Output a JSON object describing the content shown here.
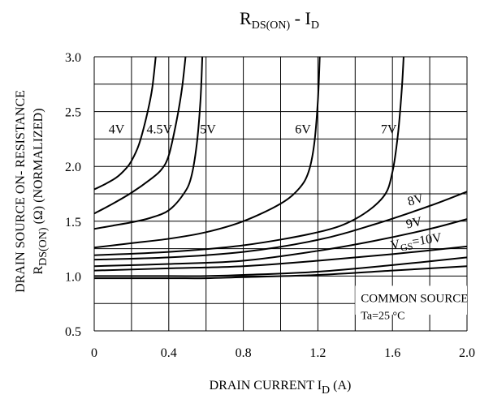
{
  "chart_data": {
    "type": "line",
    "title": {
      "main": "R",
      "main_sub": "DS(ON)",
      "sep": " - ",
      "i": "I",
      "i_sub": "D"
    },
    "xlabel": {
      "pre": "DRAIN CURRENT I",
      "sub": "D",
      "post": "  (A)"
    },
    "ylabel": {
      "line1": "DRAIN SOURCE ON- RESISTANCE",
      "line2_pre": "R",
      "line2_sub": "DS(ON)",
      "line2_post": "  (Ω)    (NORMALIZED)"
    },
    "xlim": [
      0,
      2.0
    ],
    "ylim": [
      0.5,
      3.0
    ],
    "x_ticks": [
      "0",
      "0.4",
      "0.8",
      "1.2",
      "1.6",
      "2.0"
    ],
    "y_ticks": [
      "0.5",
      "1.0",
      "1.5",
      "2.0",
      "2.5",
      "3.0"
    ],
    "grid": true,
    "annotation": {
      "line1": "COMMON SOURCE",
      "line2": "Ta=25 °C"
    },
    "series": [
      {
        "name": "4V",
        "label_pre": "4V",
        "points": [
          [
            0,
            1.79
          ],
          [
            0.06,
            1.84
          ],
          [
            0.12,
            1.9
          ],
          [
            0.17,
            1.98
          ],
          [
            0.2,
            2.05
          ],
          [
            0.24,
            2.2
          ],
          [
            0.28,
            2.45
          ],
          [
            0.31,
            2.7
          ],
          [
            0.33,
            3.0
          ]
        ]
      },
      {
        "name": "4.5V",
        "label_pre": "4.5V",
        "points": [
          [
            0,
            1.57
          ],
          [
            0.1,
            1.66
          ],
          [
            0.2,
            1.76
          ],
          [
            0.3,
            1.88
          ],
          [
            0.36,
            1.97
          ],
          [
            0.4,
            2.1
          ],
          [
            0.44,
            2.4
          ],
          [
            0.47,
            2.7
          ],
          [
            0.49,
            3.0
          ]
        ]
      },
      {
        "name": "5V",
        "label_pre": "5V",
        "points": [
          [
            0,
            1.43
          ],
          [
            0.1,
            1.46
          ],
          [
            0.2,
            1.49
          ],
          [
            0.3,
            1.53
          ],
          [
            0.4,
            1.6
          ],
          [
            0.48,
            1.75
          ],
          [
            0.52,
            1.9
          ],
          [
            0.55,
            2.2
          ],
          [
            0.57,
            2.6
          ],
          [
            0.58,
            3.0
          ]
        ]
      },
      {
        "name": "6V",
        "label_pre": "6V",
        "points": [
          [
            0,
            1.26
          ],
          [
            0.2,
            1.3
          ],
          [
            0.4,
            1.34
          ],
          [
            0.6,
            1.4
          ],
          [
            0.8,
            1.5
          ],
          [
            1.0,
            1.66
          ],
          [
            1.1,
            1.8
          ],
          [
            1.15,
            1.95
          ],
          [
            1.18,
            2.2
          ],
          [
            1.2,
            2.6
          ],
          [
            1.21,
            3.0
          ]
        ]
      },
      {
        "name": "7V",
        "label_pre": "7V",
        "points": [
          [
            0,
            1.19
          ],
          [
            0.4,
            1.22
          ],
          [
            0.8,
            1.28
          ],
          [
            1.2,
            1.4
          ],
          [
            1.4,
            1.52
          ],
          [
            1.55,
            1.72
          ],
          [
            1.6,
            1.95
          ],
          [
            1.63,
            2.3
          ],
          [
            1.65,
            2.7
          ],
          [
            1.66,
            3.0
          ]
        ]
      },
      {
        "name": "8V",
        "label_pre": "8V",
        "points": [
          [
            0,
            1.15
          ],
          [
            0.4,
            1.17
          ],
          [
            0.8,
            1.22
          ],
          [
            1.2,
            1.33
          ],
          [
            1.5,
            1.47
          ],
          [
            1.8,
            1.64
          ],
          [
            2.0,
            1.77
          ]
        ]
      },
      {
        "name": "9V",
        "label_pre": "9V",
        "points": [
          [
            0,
            1.09
          ],
          [
            0.4,
            1.11
          ],
          [
            0.8,
            1.14
          ],
          [
            1.2,
            1.23
          ],
          [
            1.5,
            1.32
          ],
          [
            1.8,
            1.43
          ],
          [
            2.0,
            1.52
          ]
        ]
      },
      {
        "name": "VGS=10V",
        "label_pre": "V",
        "label_sub": "GS",
        "label_post": "=10V",
        "points": [
          [
            0,
            1.05
          ],
          [
            0.4,
            1.07
          ],
          [
            0.8,
            1.09
          ],
          [
            1.2,
            1.14
          ],
          [
            1.6,
            1.2
          ],
          [
            2.0,
            1.27
          ]
        ]
      },
      {
        "name": "",
        "label_pre": "",
        "points": [
          [
            0,
            1.0
          ],
          [
            0.4,
            1.0
          ],
          [
            0.6,
            1.0
          ],
          [
            0.8,
            1.01
          ],
          [
            1.2,
            1.04
          ],
          [
            1.6,
            1.1
          ],
          [
            2.0,
            1.17
          ]
        ]
      },
      {
        "name": "",
        "label_pre": "",
        "points": [
          [
            0,
            0.98
          ],
          [
            0.4,
            0.98
          ],
          [
            0.6,
            0.98
          ],
          [
            0.8,
            0.99
          ],
          [
            1.2,
            1.01
          ],
          [
            1.6,
            1.05
          ],
          [
            2.0,
            1.09
          ]
        ]
      }
    ]
  }
}
